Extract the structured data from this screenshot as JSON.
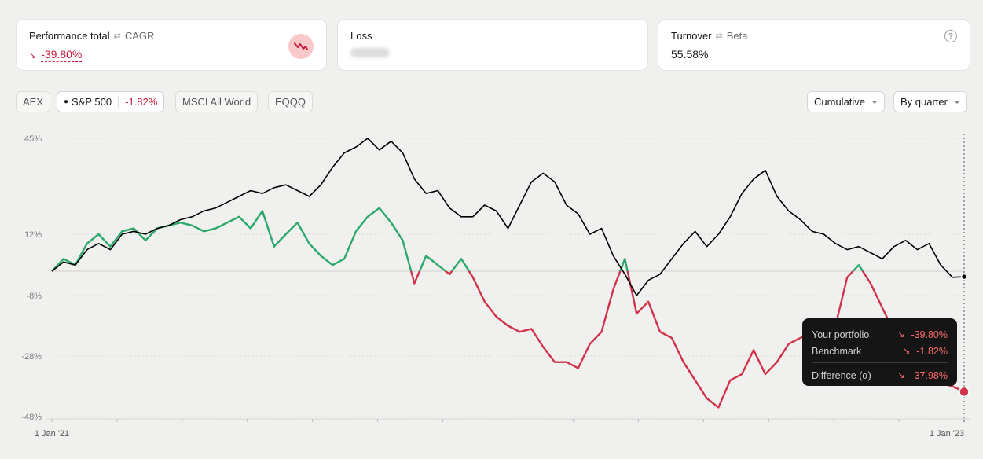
{
  "cards": {
    "performance": {
      "title": "Performance total",
      "alt": "CAGR",
      "value": "-39.80%",
      "icon": "falling-chart-icon"
    },
    "loss": {
      "title": "Loss"
    },
    "turnover": {
      "title": "Turnover",
      "alt": "Beta",
      "value": "55.58%",
      "icon": "help-icon"
    }
  },
  "benchmarks": [
    {
      "label": "AEX"
    },
    {
      "label": "S&P 500",
      "value": "-1.82%",
      "active": true
    },
    {
      "label": "MSCI All World"
    },
    {
      "label": "EQQQ"
    }
  ],
  "controls": {
    "mode": "Cumulative",
    "period": "By quarter"
  },
  "tooltip": {
    "portfolio_label": "Your portfolio",
    "portfolio_value": "-39.80%",
    "benchmark_label": "Benchmark",
    "benchmark_value": "-1.82%",
    "difference_label": "Difference (α)",
    "difference_value": "-37.98%"
  },
  "colors": {
    "positive": "#2ba86a",
    "negative": "#d1334a",
    "benchmark": "#000000",
    "accent_red": "#c8193c"
  },
  "chart_data": {
    "type": "line",
    "title": "",
    "xlabel": "",
    "ylabel": "",
    "x_tick_labels": [
      "1 Jan '21",
      "1 Jan '23"
    ],
    "y_ticks": [
      "45%",
      "12%",
      "-8%",
      "-28%",
      "-48%"
    ],
    "ylim": [
      -48,
      45
    ],
    "y_scale_note": "axis ticks unevenly spaced as printed",
    "grid": true,
    "series": [
      {
        "name": "Your portfolio",
        "values": [
          0,
          4,
          2,
          9,
          12,
          8,
          13,
          14,
          10,
          14,
          15,
          16,
          15,
          13,
          14,
          16,
          18,
          14,
          20,
          8,
          12,
          16,
          9,
          5,
          2,
          4,
          13,
          18,
          21,
          16,
          10,
          -4,
          5,
          2,
          -1,
          4,
          -2,
          -10,
          -15,
          -18,
          -20,
          -19,
          -25,
          -30,
          -30,
          -32,
          -24,
          -20,
          -6,
          4,
          -14,
          -10,
          -20,
          -22,
          -30,
          -36,
          -42,
          -45,
          -36,
          -34,
          -26,
          -34,
          -30,
          -24,
          -22,
          -20,
          -28,
          -18,
          -2,
          2,
          -4,
          -12,
          -20,
          -30,
          -34,
          -36,
          -37,
          -38,
          -39.8
        ]
      },
      {
        "name": "Benchmark",
        "values": [
          0,
          3,
          2,
          7,
          9,
          7,
          12,
          13,
          12,
          14,
          15,
          17,
          18,
          20,
          21,
          23,
          25,
          27,
          26,
          28,
          29,
          27,
          25,
          29,
          35,
          40,
          42,
          45,
          41,
          44,
          40,
          31,
          26,
          27,
          21,
          18,
          18,
          22,
          20,
          14,
          22,
          30,
          33,
          30,
          22,
          19,
          12,
          14,
          5,
          -1,
          -8,
          -3,
          -1,
          4,
          9,
          13,
          8,
          12,
          18,
          26,
          31,
          34,
          25,
          20,
          17,
          13,
          12,
          9,
          7,
          8,
          6,
          4,
          8,
          10,
          7,
          9,
          2,
          -2,
          -1.82
        ]
      }
    ]
  }
}
